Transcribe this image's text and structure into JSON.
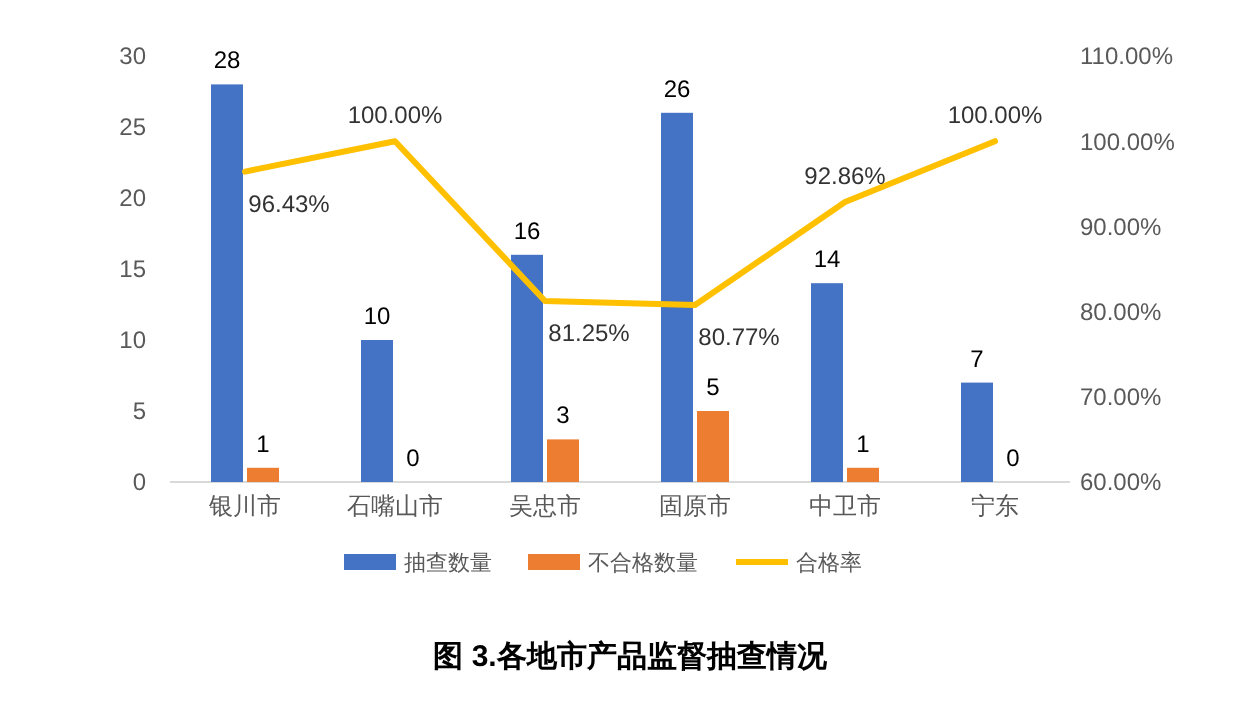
{
  "chart_data": {
    "type": "bar",
    "title": "图 3.各地市产品监督抽查情况",
    "categories": [
      "银川市",
      "石嘴山市",
      "吴忠市",
      "固原市",
      "中卫市",
      "宁东"
    ],
    "series": [
      {
        "name": "抽查数量",
        "color": "#4472c4",
        "values": [
          28,
          10,
          16,
          26,
          14,
          7
        ],
        "value_labels": [
          "28",
          "10",
          "16",
          "26",
          "14",
          "7"
        ]
      },
      {
        "name": "不合格数量",
        "color": "#ed7d31",
        "values": [
          1,
          0,
          3,
          5,
          1,
          0
        ],
        "value_labels": [
          "1",
          "0",
          "3",
          "5",
          "1",
          "0"
        ]
      },
      {
        "name": "合格率",
        "type": "line",
        "axis": "y2",
        "color": "#ffc000",
        "values": [
          96.43,
          100,
          81.25,
          80.77,
          92.86,
          100
        ],
        "value_labels": [
          "96.43%",
          "100.00%",
          "81.25%",
          "80.77%",
          "92.86%",
          "100.00%"
        ]
      }
    ],
    "ylim": [
      0,
      30
    ],
    "yticks": [
      0,
      5,
      10,
      15,
      20,
      25,
      30
    ],
    "y2lim": [
      60,
      110
    ],
    "y2ticks": [
      {
        "value": 60,
        "label": "60.00%"
      },
      {
        "value": 70,
        "label": "70.00%"
      },
      {
        "value": 80,
        "label": "80.00%"
      },
      {
        "value": 90,
        "label": "90.00%"
      },
      {
        "value": 100,
        "label": "100.00%"
      },
      {
        "value": 110,
        "label": "110.00%"
      }
    ],
    "grid": false,
    "legend": "bottom",
    "marker": "none",
    "line_style": "solid"
  }
}
